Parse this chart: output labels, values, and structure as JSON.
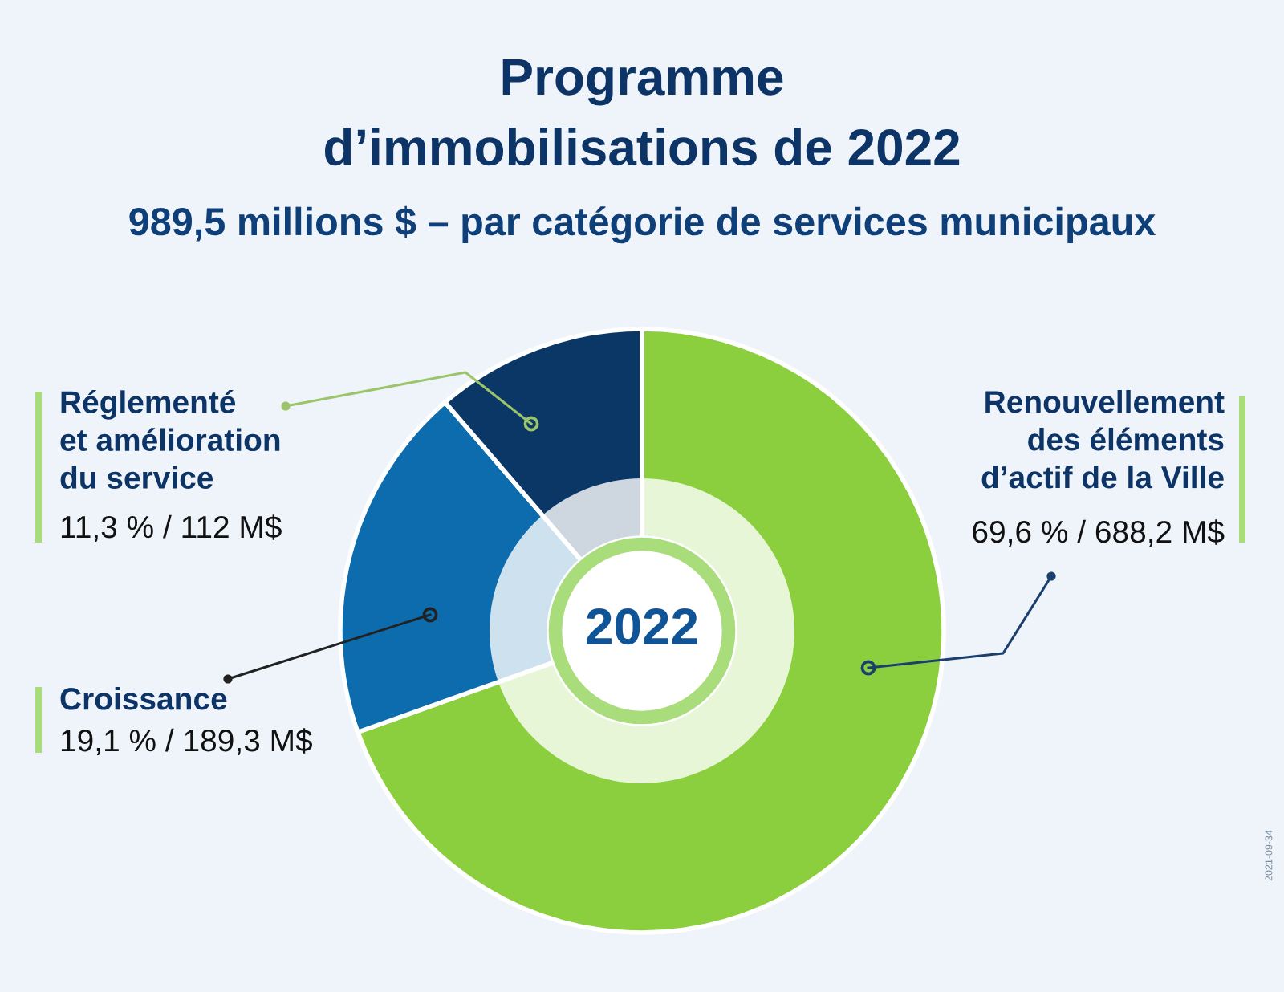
{
  "chart_data": {
    "type": "donut",
    "title": "Programme\nd’immobilisations de 2022",
    "subtitle": "989,5 millions $ – par catégorie de services municipaux",
    "categories": [
      "Renouvellement\ndes éléments\nd’actif de la Ville",
      "Croissance",
      "Réglementé\net amélioration\ndu service"
    ],
    "values": [
      688.2,
      189.3,
      112
    ],
    "colors": [
      "#8ccf3e",
      "#0c6cad",
      "#0b3767"
    ],
    "value_labels": [
      "69,6 % / 688,2 M$",
      "19,1 % / 189,3 M$",
      "11,3 % / 112 M$"
    ],
    "annotations": [
      "2022",
      "2021-09-34"
    ]
  }
}
